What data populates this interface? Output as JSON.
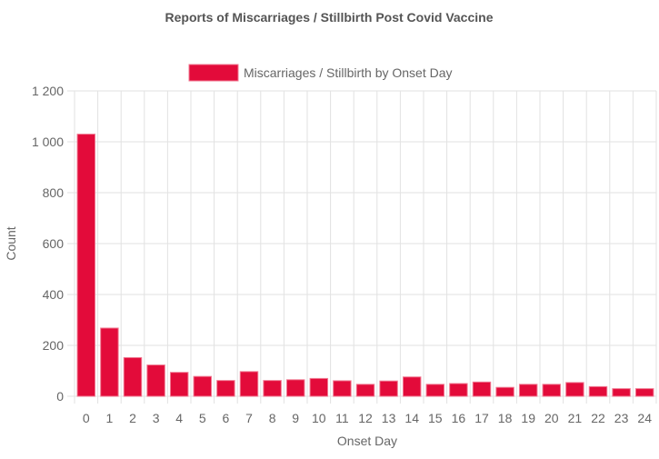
{
  "chart_data": {
    "type": "bar",
    "title": "Reports of Miscarriages / Stillbirth Post Covid Vaccine",
    "xlabel": "Onset Day",
    "ylabel": "Count",
    "categories": [
      "0",
      "1",
      "2",
      "3",
      "4",
      "5",
      "6",
      "7",
      "8",
      "9",
      "10",
      "11",
      "12",
      "13",
      "14",
      "15",
      "16",
      "17",
      "18",
      "19",
      "20",
      "21",
      "22",
      "23",
      "24"
    ],
    "series": [
      {
        "name": "Miscarriages / Stillbirth by Onset Day",
        "values": [
          1030,
          268,
          152,
          123,
          94,
          78,
          62,
          97,
          62,
          65,
          70,
          61,
          47,
          60,
          76,
          47,
          50,
          56,
          35,
          47,
          47,
          54,
          38,
          30,
          30
        ],
        "color": "#e30b3a"
      }
    ],
    "ylim": [
      0,
      1200
    ],
    "yticks": [
      0,
      200,
      400,
      600,
      800,
      1000,
      1200
    ],
    "ytick_labels": [
      "0",
      "200",
      "400",
      "600",
      "800",
      "1 000",
      "1 200"
    ],
    "grid": true,
    "legend_position": "top"
  },
  "colors": {
    "bar_fill": "#e30b3a",
    "bar_edge": "#f07a92",
    "grid": "#e2e2e2",
    "text": "#666666",
    "title": "#555555"
  }
}
